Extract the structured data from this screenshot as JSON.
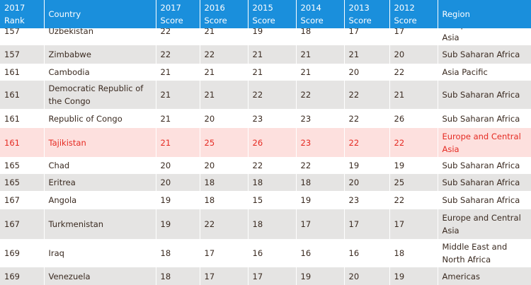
{
  "table": {
    "header": [
      "2017 Rank",
      "Country",
      "2017 Score",
      "2016 Score",
      "2015 Score",
      "2014 Score",
      "2013 Score",
      "2012 Score",
      "Region"
    ],
    "rows": [
      [
        "157",
        "Uzbekistan",
        "22",
        "21",
        "19",
        "18",
        "17",
        "17",
        "Europe and Central Asia"
      ],
      [
        "157",
        "Zimbabwe",
        "22",
        "22",
        "21",
        "21",
        "21",
        "20",
        "Sub Saharan Africa"
      ],
      [
        "161",
        "Cambodia",
        "21",
        "21",
        "21",
        "21",
        "20",
        "22",
        "Asia Pacific"
      ],
      [
        "161",
        "Democratic Republic of the Congo",
        "21",
        "21",
        "22",
        "22",
        "22",
        "21",
        "Sub Saharan Africa"
      ],
      [
        "161",
        "Republic of Congo",
        "21",
        "20",
        "23",
        "23",
        "22",
        "26",
        "Sub Saharan Africa"
      ],
      [
        "161",
        "Tajikistan",
        "21",
        "25",
        "26",
        "23",
        "22",
        "22",
        "Europe and Central Asia"
      ],
      [
        "165",
        "Chad",
        "20",
        "20",
        "22",
        "22",
        "19",
        "19",
        "Sub Saharan Africa"
      ],
      [
        "165",
        "Eritrea",
        "20",
        "18",
        "18",
        "18",
        "20",
        "25",
        "Sub Saharan Africa"
      ],
      [
        "167",
        "Angola",
        "19",
        "18",
        "15",
        "19",
        "23",
        "22",
        "Sub Saharan Africa"
      ],
      [
        "167",
        "Turkmenistan",
        "19",
        "22",
        "18",
        "17",
        "17",
        "17",
        "Europe and Central Asia"
      ],
      [
        "169",
        "Iraq",
        "18",
        "17",
        "16",
        "16",
        "16",
        "18",
        "Middle East and North Africa"
      ],
      [
        "169",
        "Venezuela",
        "18",
        "17",
        "17",
        "19",
        "20",
        "19",
        "Americas"
      ]
    ]
  }
}
